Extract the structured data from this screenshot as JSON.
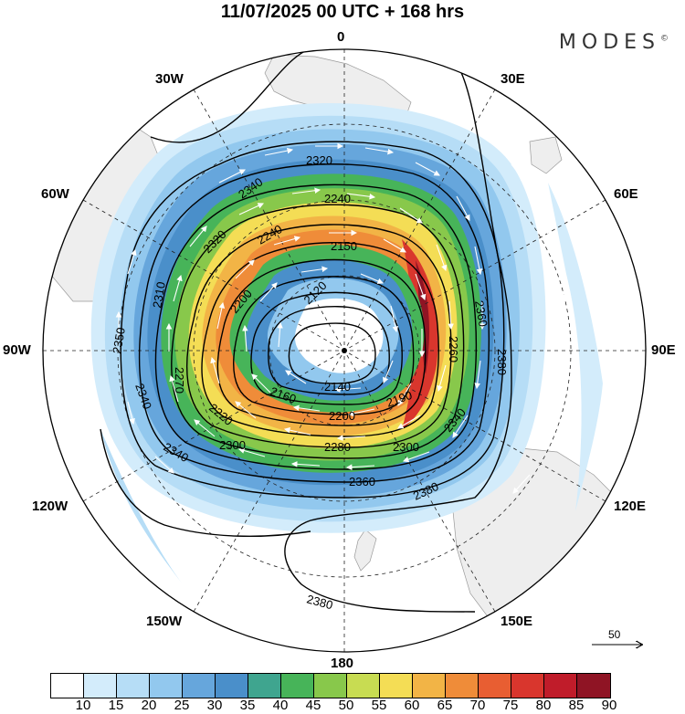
{
  "header": {
    "title": "11/07/2025  00 UTC  + 168 hrs",
    "brand": "MODES",
    "brand_mark": "©"
  },
  "map": {
    "projection": "south-polar-stereographic",
    "lon_labels": {
      "top": "0",
      "top_right": "30E",
      "right_upper": "60E",
      "right": "90E",
      "right_lower": "120E",
      "bottom_right": "150E",
      "bottom": "180",
      "bottom_left": "150W",
      "left_lower": "120W",
      "left": "90W",
      "left_upper": "60W",
      "top_left": "30W"
    },
    "contour_labels": [
      "2320",
      "2340",
      "2240",
      "2240",
      "2150",
      "2320",
      "2310",
      "2120",
      "2200",
      "2350",
      "2270",
      "2340",
      "2220",
      "2160",
      "2140",
      "2190",
      "2200",
      "2340",
      "2340",
      "2300",
      "2280",
      "2300",
      "2360",
      "2360",
      "2380",
      "2380",
      "2260",
      "2380"
    ],
    "vector_reference": {
      "value": "50"
    }
  },
  "colorbar": {
    "ticks": [
      "10",
      "15",
      "20",
      "25",
      "30",
      "35",
      "40",
      "45",
      "50",
      "55",
      "60",
      "65",
      "70",
      "75",
      "80",
      "85",
      "90"
    ],
    "colors": [
      "#ffffff",
      "#d3ecfb",
      "#b6ddf6",
      "#92c8ee",
      "#66a6dc",
      "#4a8fca",
      "#3fa58f",
      "#47b459",
      "#88c84b",
      "#c8dc52",
      "#f4dd55",
      "#f2b446",
      "#ef8c39",
      "#e85e32",
      "#d9362d",
      "#c01c2a",
      "#8f1424"
    ]
  }
}
